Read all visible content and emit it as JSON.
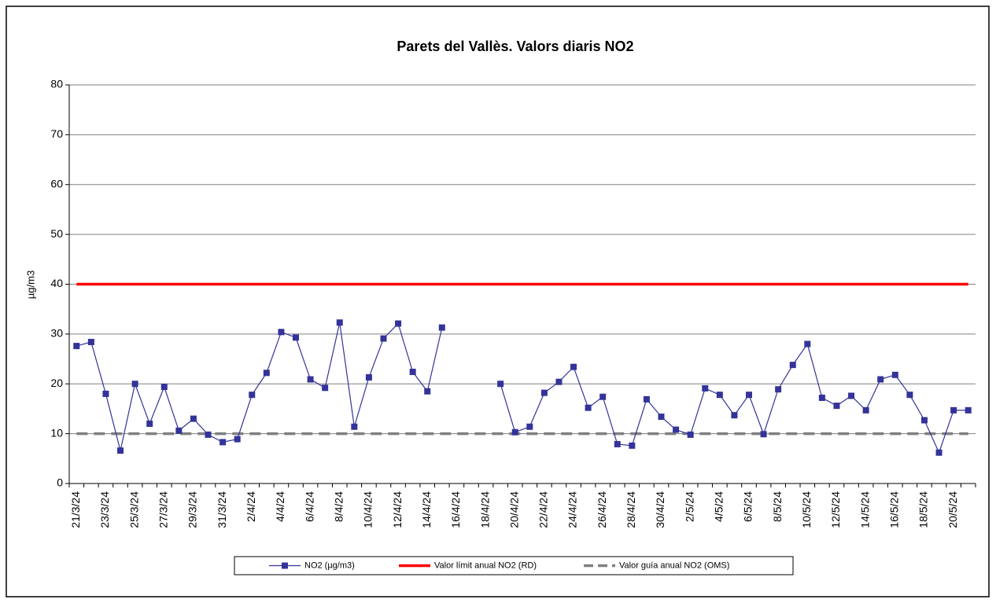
{
  "chart_data": {
    "type": "line",
    "title": "Parets del Vallès. Valors diaris NO2",
    "y_label": "µg/m3",
    "categories": [
      "21/3/24",
      null,
      "23/3/24",
      null,
      "25/3/24",
      null,
      "27/3/24",
      null,
      "29/3/24",
      null,
      "31/3/24",
      null,
      "2/4/24",
      null,
      "4/4/24",
      null,
      "6/4/24",
      null,
      "8/4/24",
      null,
      "10/4/24",
      null,
      "12/4/24",
      null,
      "14/4/24",
      null,
      "16/4/24",
      null,
      "18/4/24",
      null,
      "20/4/24",
      null,
      "22/4/24",
      null,
      "24/4/24",
      null,
      "26/4/24",
      null,
      "28/4/24",
      null,
      "30/4/24",
      null,
      "2/5/24",
      null,
      "4/5/24",
      null,
      "6/5/24",
      null,
      "8/5/24",
      null,
      "10/5/24",
      null,
      "12/5/24",
      null,
      "14/5/24",
      null,
      "16/5/24",
      null,
      "18/5/24",
      null,
      "20/5/24",
      null
    ],
    "series": [
      {
        "name": "NO2 (µg/m3)",
        "color": "#333399",
        "marker": "square",
        "values": [
          27.6,
          28.4,
          18,
          6.6,
          20,
          12,
          19.4,
          10.6,
          13,
          9.8,
          8.3,
          8.9,
          17.8,
          22.2,
          30.4,
          29.3,
          20.9,
          19.2,
          32.3,
          11.4,
          21.3,
          29.1,
          32.1,
          22.4,
          18.5,
          31.3,
          null,
          null,
          null,
          20,
          10.3,
          11.4,
          18.2,
          20.4,
          23.4,
          15.2,
          17.4,
          7.9,
          7.6,
          16.9,
          13.4,
          10.8,
          9.8,
          19.1,
          17.8,
          13.7,
          17.8,
          9.9,
          18.9,
          23.8,
          28,
          17.2,
          15.6,
          17.6,
          14.7,
          20.9,
          21.8,
          17.8,
          12.7,
          6.2,
          14.7,
          14.7
        ]
      },
      {
        "name": "Valor límit anual NO2 (RD)",
        "color": "#ff0000",
        "values": [
          40,
          40,
          40,
          40,
          40,
          40,
          40,
          40,
          40,
          40,
          40,
          40,
          40,
          40,
          40,
          40,
          40,
          40,
          40,
          40,
          40,
          40,
          40,
          40,
          40,
          40,
          40,
          40,
          40,
          40,
          40,
          40,
          40,
          40,
          40,
          40,
          40,
          40,
          40,
          40,
          40,
          40,
          40,
          40,
          40,
          40,
          40,
          40,
          40,
          40,
          40,
          40,
          40,
          40,
          40,
          40,
          40,
          40,
          40,
          40,
          40,
          40
        ]
      },
      {
        "name": "Valor guía anual NO2 (OMS)",
        "color": "#808080",
        "dashed": true,
        "values": [
          10,
          10,
          10,
          10,
          10,
          10,
          10,
          10,
          10,
          10,
          10,
          10,
          10,
          10,
          10,
          10,
          10,
          10,
          10,
          10,
          10,
          10,
          10,
          10,
          10,
          10,
          10,
          10,
          10,
          10,
          10,
          10,
          10,
          10,
          10,
          10,
          10,
          10,
          10,
          10,
          10,
          10,
          10,
          10,
          10,
          10,
          10,
          10,
          10,
          10,
          10,
          10,
          10,
          10,
          10,
          10,
          10,
          10,
          10,
          10,
          10,
          10
        ]
      }
    ],
    "ylim": [
      0,
      80
    ],
    "yticks": [
      0,
      10,
      20,
      30,
      40,
      50,
      60,
      70,
      80
    ],
    "grid": true,
    "legend": "bottom"
  }
}
